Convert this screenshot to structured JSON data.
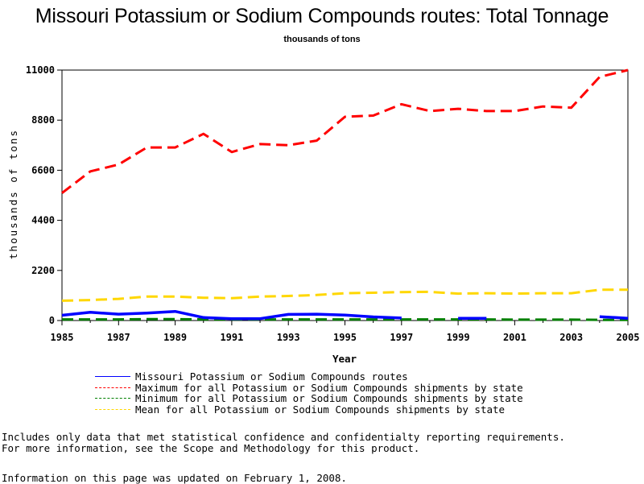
{
  "chart_data": {
    "type": "line",
    "title": "Missouri Potassium or Sodium Compounds routes: Total Tonnage",
    "subtitle": "thousands of tons",
    "xlabel": "Year",
    "ylabel": "thousands of tons",
    "xlim": [
      1985,
      2005
    ],
    "ylim": [
      0,
      11000
    ],
    "x_ticks": [
      1985,
      1987,
      1989,
      1991,
      1993,
      1995,
      1997,
      1999,
      2001,
      2003,
      2005
    ],
    "y_ticks": [
      0,
      2200,
      4400,
      6600,
      8800,
      11000
    ],
    "grid": false,
    "legend_position": "bottom",
    "x": [
      1985,
      1986,
      1987,
      1988,
      1989,
      1990,
      1991,
      1992,
      1993,
      1994,
      1995,
      1996,
      1997,
      1998,
      1999,
      2000,
      2001,
      2002,
      2003,
      2004,
      2005
    ],
    "series": [
      {
        "name": "Missouri Potassium or Sodium Compounds routes",
        "color": "#0000ff",
        "dash": "solid",
        "values": [
          230,
          360,
          280,
          330,
          400,
          130,
          80,
          80,
          270,
          280,
          240,
          160,
          110,
          null,
          100,
          100,
          null,
          null,
          null,
          170,
          100
        ]
      },
      {
        "name": "Maximum for all Potassium or Sodium Compounds shipments by state",
        "color": "#ff0000",
        "dash": "dashed",
        "values": [
          5600,
          6550,
          6850,
          7600,
          7600,
          8200,
          7400,
          7750,
          7700,
          7900,
          8950,
          9000,
          9500,
          9200,
          9300,
          9200,
          9200,
          9400,
          9350,
          10700,
          11000
        ]
      },
      {
        "name": "Minimum for all Potassium or Sodium Compounds shipments by state",
        "color": "#008000",
        "dash": "dashed",
        "values": [
          50,
          50,
          50,
          60,
          60,
          50,
          50,
          50,
          50,
          50,
          50,
          50,
          50,
          50,
          50,
          50,
          40,
          40,
          40,
          30,
          30
        ]
      },
      {
        "name": "Mean for all Potassium or Sodium Compounds shipments by state",
        "color": "#ffd700",
        "dash": "dashed",
        "values": [
          870,
          900,
          950,
          1050,
          1050,
          1000,
          980,
          1050,
          1080,
          1120,
          1200,
          1220,
          1250,
          1260,
          1180,
          1200,
          1180,
          1200,
          1200,
          1350,
          1350
        ]
      }
    ]
  },
  "legend": [
    {
      "label": "Missouri Potassium or Sodium Compounds routes",
      "color": "#0000ff",
      "style": "solid"
    },
    {
      "label": "Maximum for all Potassium or Sodium Compounds shipments by state",
      "color": "#ff0000",
      "style": "dashed"
    },
    {
      "label": "Minimum for all Potassium or Sodium Compounds shipments by state",
      "color": "#008000",
      "style": "dashed"
    },
    {
      "label": "Mean for all Potassium or Sodium Compounds shipments by state",
      "color": "#ffd700",
      "style": "dashed"
    }
  ],
  "notes": {
    "line1": "Includes only data that met statistical confidence and confidentialty reporting requirements.",
    "line2": "For more information, see the Scope and Methodology for this product.",
    "updated": "Information on this page was updated on February 1, 2008."
  }
}
